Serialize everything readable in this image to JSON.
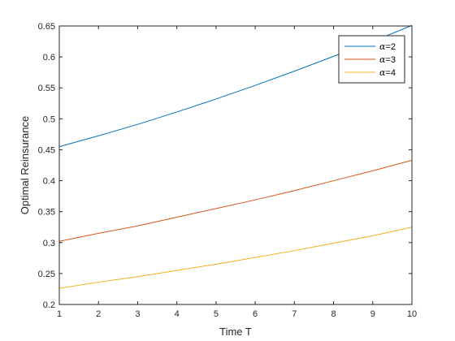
{
  "chart_data": {
    "type": "line",
    "title": "",
    "xlabel": "Time T",
    "ylabel": "Optimal Reinsurance",
    "xlim": [
      1,
      10
    ],
    "ylim": [
      0.2,
      0.65
    ],
    "xticks": [
      1,
      2,
      3,
      4,
      5,
      6,
      7,
      8,
      9,
      10
    ],
    "xtick_labels": [
      "1",
      "2",
      "3",
      "4",
      "5",
      "6",
      "7",
      "8",
      "9",
      "10"
    ],
    "yticks": [
      0.2,
      0.25,
      0.3,
      0.35,
      0.4,
      0.45,
      0.5,
      0.55,
      0.6,
      0.65
    ],
    "ytick_labels": [
      "0.2",
      "0.25",
      "0.3",
      "0.35",
      "0.4",
      "0.45",
      "0.5",
      "0.55",
      "0.6",
      "0.65"
    ],
    "grid": false,
    "legend_position": "top-right",
    "x": [
      1,
      2,
      3,
      4,
      5,
      6,
      7,
      8,
      9,
      10
    ],
    "series": [
      {
        "name": "α=2",
        "legend_symbol": "α",
        "legend_value": "=2",
        "color": "#0072BD",
        "values": [
          0.455,
          0.4725,
          0.491,
          0.511,
          0.532,
          0.554,
          0.577,
          0.601,
          0.625,
          0.651
        ]
      },
      {
        "name": "α=3",
        "legend_symbol": "α",
        "legend_value": "=3",
        "color": "#D95319",
        "values": [
          0.302,
          0.315,
          0.327,
          0.341,
          0.355,
          0.369,
          0.384,
          0.4,
          0.416,
          0.433
        ]
      },
      {
        "name": "α=4",
        "legend_symbol": "α",
        "legend_value": "=4",
        "color": "#EDB120",
        "values": [
          0.226,
          0.236,
          0.245,
          0.255,
          0.265,
          0.276,
          0.287,
          0.299,
          0.311,
          0.325
        ]
      }
    ]
  }
}
